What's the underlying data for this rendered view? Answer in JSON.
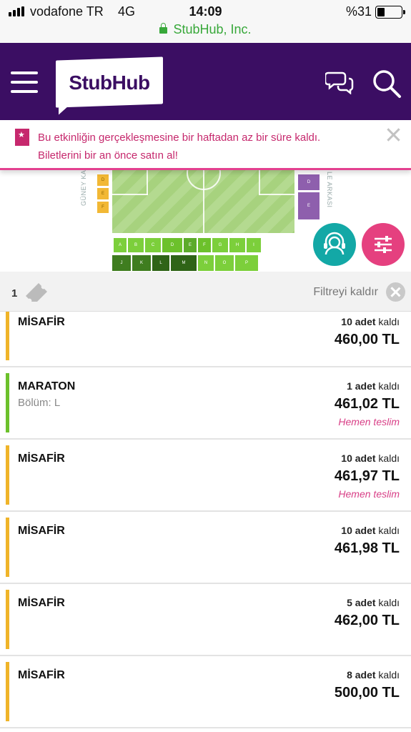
{
  "status_bar": {
    "carrier": "vodafone TR",
    "network": "4G",
    "time": "14:09",
    "battery": "%31",
    "url": "StubHub, Inc."
  },
  "header": {
    "logo": "StubHub",
    "colors": {
      "bg": "#3b0e63"
    }
  },
  "alert": {
    "message": "Bu etkinliğin gerçekleşmesine bir haftadan az bir süre kaldı. Biletlerini bir an önce satın al!"
  },
  "map": {
    "label_left": "GÜNEY KA",
    "label_right": "LE ARKASI",
    "left_blocks": [
      "D",
      "E",
      "F"
    ],
    "right_blocks": [
      "D",
      "E"
    ],
    "row_upper": [
      "A",
      "B",
      "C",
      "D",
      "E",
      "F",
      "G",
      "H",
      "I"
    ],
    "row_lower": [
      "J",
      "K",
      "L",
      "M",
      "N",
      "O",
      "P"
    ]
  },
  "filter_bar": {
    "quantity": "1",
    "clear_label": "Filtreyi kaldır"
  },
  "listings": [
    {
      "name": "MİSAFİR",
      "section": "",
      "count": "10 adet",
      "remain_suffix": "kaldı",
      "price": "460,00 TL",
      "delivery": "",
      "color": "#f0b429"
    },
    {
      "name": "MARATON",
      "section": "Bölüm: L",
      "count": "1 adet",
      "remain_suffix": "kaldı",
      "price": "461,02 TL",
      "delivery": "Hemen teslim",
      "color": "#6cc12b"
    },
    {
      "name": "MİSAFİR",
      "section": "",
      "count": "10 adet",
      "remain_suffix": "kaldı",
      "price": "461,97 TL",
      "delivery": "Hemen teslim",
      "color": "#f0b429"
    },
    {
      "name": "MİSAFİR",
      "section": "",
      "count": "10 adet",
      "remain_suffix": "kaldı",
      "price": "461,98 TL",
      "delivery": "",
      "color": "#f0b429"
    },
    {
      "name": "MİSAFİR",
      "section": "",
      "count": "5 adet",
      "remain_suffix": "kaldı",
      "price": "462,00 TL",
      "delivery": "",
      "color": "#f0b429"
    },
    {
      "name": "MİSAFİR",
      "section": "",
      "count": "8 adet",
      "remain_suffix": "kaldı",
      "price": "500,00 TL",
      "delivery": "",
      "color": "#f0b429"
    }
  ]
}
